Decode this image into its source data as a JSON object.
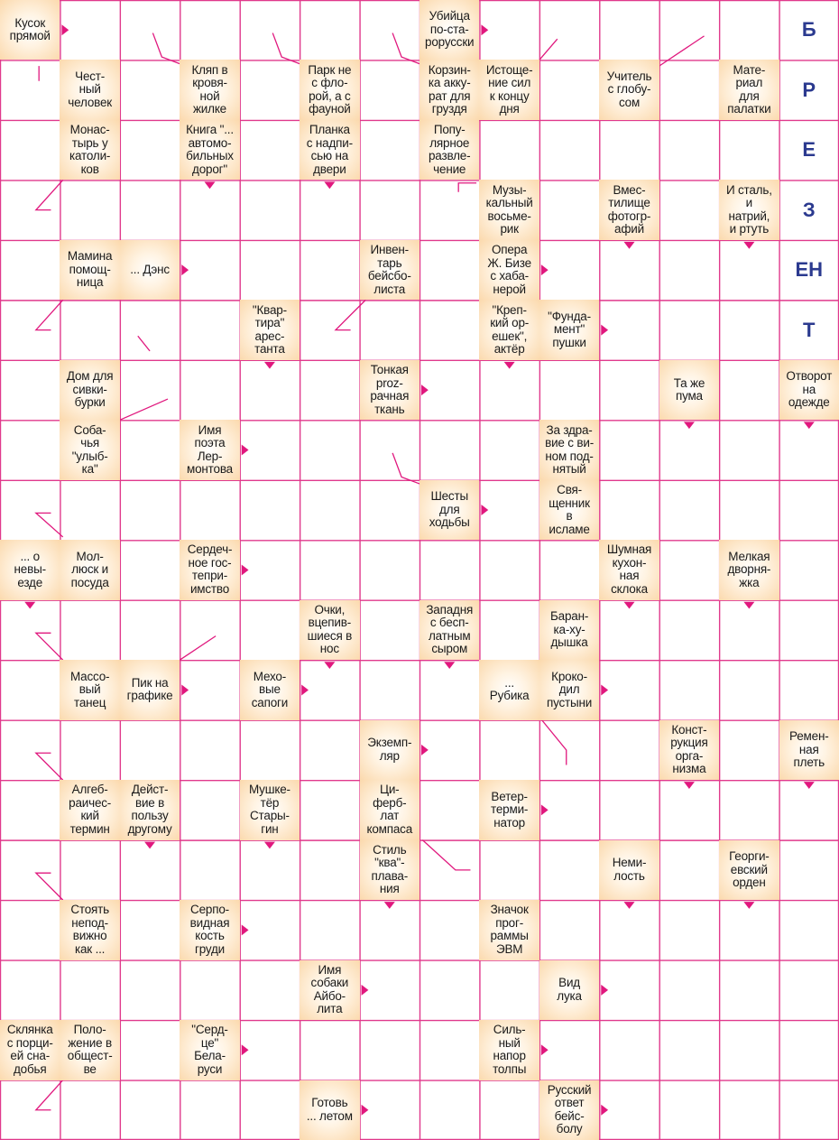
{
  "puzzle": {
    "type": "scanword",
    "grid_columns": 14,
    "grid_rows": 19,
    "colors": {
      "grid_line": "#e0398c",
      "arrow": "#e0187e",
      "clue_background": "#fbd9ad",
      "side_word": "#2b3a8f"
    },
    "side_word_letters": [
      "Б",
      "Р",
      "Е",
      "З",
      "ЕН",
      "Т"
    ],
    "clues": [
      {
        "row": 0,
        "col": 0,
        "text": "Кусок\nпрямой"
      },
      {
        "row": 0,
        "col": 7,
        "text": "Убийца\nпо-ста-\nрорусски"
      },
      {
        "row": 1,
        "col": 1,
        "text": "Чест-\nный\nчеловек"
      },
      {
        "row": 1,
        "col": 3,
        "text": "Кляп в\nкровя-\nной\nжилке"
      },
      {
        "row": 1,
        "col": 5,
        "text": "Парк не\nс фло-\nрой, а с\nфауной"
      },
      {
        "row": 1,
        "col": 7,
        "text": "Корзин-\nка акку-\nрат для\nгруздя"
      },
      {
        "row": 1,
        "col": 8,
        "text": "Истоще-\nние сил\nк концу\nдня"
      },
      {
        "row": 1,
        "col": 10,
        "text": "Учитель\nс глобу-\nсом"
      },
      {
        "row": 1,
        "col": 12,
        "text": "Мате-\nриал\nдля\nпалатки"
      },
      {
        "row": 2,
        "col": 1,
        "text": "Монас-\nтырь у\nкатоли-\nков"
      },
      {
        "row": 2,
        "col": 3,
        "text": "Книга \"...\nавтомо-\nбильных\nдорог\""
      },
      {
        "row": 2,
        "col": 5,
        "text": "Планка\nс надпи-\nсью на\nдвери"
      },
      {
        "row": 2,
        "col": 7,
        "text": "Попу-\nлярное\nразвле-\nчение"
      },
      {
        "row": 3,
        "col": 8,
        "text": "Музы-\nкальный\nвосьме-\nрик"
      },
      {
        "row": 3,
        "col": 10,
        "text": "Вмес-\nтилище\nфотогр-\nафий"
      },
      {
        "row": 3,
        "col": 12,
        "text": "И сталь,\nи\nнатрий,\nи ртуть"
      },
      {
        "row": 4,
        "col": 1,
        "text": "Мамина\nпомощ-\nница"
      },
      {
        "row": 4,
        "col": 2,
        "text": "... Дэнс"
      },
      {
        "row": 4,
        "col": 6,
        "text": "Инвен-\nтарь\nбейсбо-\nлиста"
      },
      {
        "row": 4,
        "col": 8,
        "text": "Опера\nЖ. Бизе\nс хаба-\nнерой"
      },
      {
        "row": 5,
        "col": 4,
        "text": "\"Квар-\nтира\"\nарес-\nтанта"
      },
      {
        "row": 5,
        "col": 8,
        "text": "\"Креп-\nкий ор-\nешек\",\nактёр"
      },
      {
        "row": 5,
        "col": 9,
        "text": "\"Фунда-\nмент\"\nпушки"
      },
      {
        "row": 6,
        "col": 1,
        "text": "Дом для\nсивки-\nбурки"
      },
      {
        "row": 6,
        "col": 6,
        "text": "Тонкая\nproz-\nрачная\nткань"
      },
      {
        "row": 6,
        "col": 11,
        "text": "Та же\nпума"
      },
      {
        "row": 6,
        "col": 13,
        "text": "Отворот\nна\nодежде"
      },
      {
        "row": 7,
        "col": 1,
        "text": "Соба-\nчья\n\"улыб-\nка\""
      },
      {
        "row": 7,
        "col": 3,
        "text": "Имя\nпоэта\nЛер-\nмонтова"
      },
      {
        "row": 7,
        "col": 9,
        "text": "За здра-\nвие с ви-\nном под-\nнятый"
      },
      {
        "row": 8,
        "col": 7,
        "text": "Шесты\nдля\nходьбы"
      },
      {
        "row": 8,
        "col": 9,
        "text": "Свя-\nщенник\nв\nисламе"
      },
      {
        "row": 9,
        "col": 0,
        "text": "... о\nневы-\nезде"
      },
      {
        "row": 9,
        "col": 1,
        "text": "Мол-\nлюск и\nпосуда"
      },
      {
        "row": 9,
        "col": 3,
        "text": "Сердеч-\nное гос-\nтепри-\nимство"
      },
      {
        "row": 9,
        "col": 10,
        "text": "Шумная\nкухон-\nная\nсклока"
      },
      {
        "row": 9,
        "col": 12,
        "text": "Мелкая\nдворня-\nжка"
      },
      {
        "row": 10,
        "col": 5,
        "text": "Очки,\nвцепив-\nшиеся в\nнос"
      },
      {
        "row": 10,
        "col": 7,
        "text": "Западня\nс бесп-\nлатным\nсыром"
      },
      {
        "row": 10,
        "col": 9,
        "text": "Баран-\nка-ху-\nдышка"
      },
      {
        "row": 11,
        "col": 1,
        "text": "Массо-\nвый\nтанец"
      },
      {
        "row": 11,
        "col": 2,
        "text": "Пик на\nграфике"
      },
      {
        "row": 11,
        "col": 4,
        "text": "Мехо-\nвые\nсапоги"
      },
      {
        "row": 11,
        "col": 8,
        "text": "...\nРубика"
      },
      {
        "row": 11,
        "col": 9,
        "text": "Кроко-\nдил\nпустыни"
      },
      {
        "row": 12,
        "col": 6,
        "text": "Экземп-\nляр"
      },
      {
        "row": 12,
        "col": 11,
        "text": "Конст-\nрукция\nорга-\nнизма"
      },
      {
        "row": 12,
        "col": 13,
        "text": "Ремен-\nная\nплеть"
      },
      {
        "row": 13,
        "col": 1,
        "text": "Алгеб-\nраичес-\nкий\nтермин"
      },
      {
        "row": 13,
        "col": 2,
        "text": "Дейст-\nвие в\nпользу\nдругому"
      },
      {
        "row": 13,
        "col": 4,
        "text": "Мушке-\nтёр\nСтары-\nгин"
      },
      {
        "row": 13,
        "col": 6,
        "text": "Ци-\nферб-\nлат\nкомпаса"
      },
      {
        "row": 13,
        "col": 8,
        "text": "Ветер-\nтерми-\nнатор"
      },
      {
        "row": 14,
        "col": 6,
        "text": "Стиль\n\"ква\"-\nплава-\nния"
      },
      {
        "row": 14,
        "col": 10,
        "text": "Неми-\nлость"
      },
      {
        "row": 14,
        "col": 12,
        "text": "Георги-\nевский\nорден"
      },
      {
        "row": 15,
        "col": 1,
        "text": "Стоять\nнепод-\nвижно\nкак ..."
      },
      {
        "row": 15,
        "col": 3,
        "text": "Серпо-\nвидная\nкость\nгруди"
      },
      {
        "row": 15,
        "col": 8,
        "text": "Значок\nпрог-\nраммы\nЭВМ"
      },
      {
        "row": 16,
        "col": 5,
        "text": "Имя\nсобаки\nАйбо-\nлита"
      },
      {
        "row": 16,
        "col": 9,
        "text": "Вид\nлука"
      },
      {
        "row": 17,
        "col": 0,
        "text": "Склянка\nс порци-\nей сна-\nдобья"
      },
      {
        "row": 17,
        "col": 1,
        "text": "Поло-\nжение в\nобщест-\nве"
      },
      {
        "row": 17,
        "col": 3,
        "text": "\"Серд-\nце\"\nБела-\nруси"
      },
      {
        "row": 17,
        "col": 8,
        "text": "Силь-\nный\nнапор\nтолпы"
      },
      {
        "row": 18,
        "col": 5,
        "text": "Готовь\n... летом"
      },
      {
        "row": 18,
        "col": 9,
        "text": "Русский\nответ\nбейс-\nболу"
      }
    ]
  }
}
